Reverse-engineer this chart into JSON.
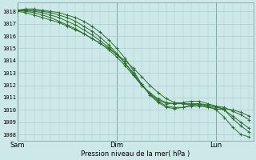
{
  "title": "Pression niveau de la mer( hPa )",
  "bg_color": "#cce8e8",
  "grid_color": "#aacccc",
  "line_color": "#2d6e2d",
  "ylim_low": 1007.5,
  "ylim_high": 1018.7,
  "yticks": [
    1008,
    1009,
    1010,
    1011,
    1012,
    1013,
    1014,
    1015,
    1016,
    1017,
    1018
  ],
  "xtick_labels": [
    "Sam",
    "Dim",
    "Lun"
  ],
  "xtick_pos": [
    0,
    48,
    96
  ],
  "xlim": [
    0,
    114
  ],
  "series_x": {
    "s1": [
      0,
      4,
      8,
      12,
      16,
      20,
      24,
      28,
      32,
      36,
      40,
      44,
      48,
      52,
      56,
      60,
      64,
      68,
      72,
      76,
      80,
      84,
      88,
      92,
      96,
      100,
      104,
      108,
      112
    ],
    "s2": [
      0,
      4,
      8,
      12,
      16,
      20,
      24,
      28,
      32,
      36,
      40,
      44,
      48,
      52,
      56,
      60,
      64,
      68,
      72,
      76,
      80,
      84,
      88,
      92,
      96,
      100,
      104,
      108,
      112
    ],
    "s3": [
      0,
      4,
      8,
      12,
      16,
      20,
      24,
      28,
      32,
      36,
      40,
      44,
      48,
      52,
      56,
      60,
      64,
      68,
      72,
      76,
      80,
      84,
      88,
      92,
      96,
      100,
      104,
      108,
      112
    ],
    "s4": [
      0,
      4,
      8,
      12,
      16,
      20,
      24,
      28,
      32,
      36,
      40,
      44,
      48,
      52,
      56,
      60,
      64,
      68,
      72,
      76,
      80,
      84,
      88,
      92,
      96,
      100,
      104,
      108,
      112
    ],
    "s5": [
      0,
      4,
      8,
      12,
      16,
      20,
      24,
      28,
      32,
      36,
      40,
      44,
      48,
      52,
      56,
      60,
      64,
      68,
      72,
      76,
      80,
      84,
      88,
      92,
      96,
      100,
      104,
      108,
      112
    ]
  },
  "series_y": {
    "s1": [
      1018.0,
      1017.9,
      1017.7,
      1017.5,
      1017.3,
      1017.1,
      1016.8,
      1016.5,
      1016.2,
      1015.8,
      1015.4,
      1015.0,
      1014.5,
      1014.0,
      1013.4,
      1012.7,
      1012.0,
      1011.4,
      1010.9,
      1010.6,
      1010.5,
      1010.4,
      1010.4,
      1010.3,
      1010.2,
      1010.1,
      1010.0,
      1009.8,
      1009.5
    ],
    "s2": [
      1018.1,
      1018.0,
      1017.9,
      1017.7,
      1017.5,
      1017.2,
      1016.9,
      1016.6,
      1016.2,
      1015.8,
      1015.4,
      1014.9,
      1014.3,
      1013.6,
      1012.8,
      1012.0,
      1011.4,
      1010.9,
      1010.6,
      1010.5,
      1010.5,
      1010.5,
      1010.5,
      1010.4,
      1010.3,
      1010.2,
      1009.9,
      1009.6,
      1009.2
    ],
    "s3": [
      1018.1,
      1018.1,
      1018.0,
      1017.9,
      1017.7,
      1017.5,
      1017.2,
      1016.9,
      1016.5,
      1016.1,
      1015.6,
      1015.1,
      1014.5,
      1013.8,
      1013.0,
      1012.1,
      1011.3,
      1010.7,
      1010.3,
      1010.2,
      1010.2,
      1010.3,
      1010.3,
      1010.2,
      1010.1,
      1010.0,
      1009.5,
      1009.0,
      1008.5
    ],
    "s4": [
      1018.0,
      1018.1,
      1018.1,
      1018.0,
      1017.9,
      1017.7,
      1017.5,
      1017.2,
      1016.8,
      1016.4,
      1015.9,
      1015.3,
      1014.6,
      1013.8,
      1012.9,
      1012.0,
      1011.3,
      1010.8,
      1010.5,
      1010.5,
      1010.6,
      1010.7,
      1010.7,
      1010.5,
      1010.3,
      1010.0,
      1009.3,
      1008.7,
      1008.2
    ],
    "s5": [
      1018.1,
      1018.2,
      1018.2,
      1018.1,
      1018.0,
      1017.9,
      1017.7,
      1017.5,
      1017.2,
      1016.8,
      1016.3,
      1015.7,
      1015.0,
      1014.2,
      1013.2,
      1012.1,
      1011.2,
      1010.6,
      1010.2,
      1010.1,
      1010.2,
      1010.4,
      1010.5,
      1010.3,
      1010.0,
      1009.4,
      1008.6,
      1008.0,
      1007.8
    ]
  }
}
